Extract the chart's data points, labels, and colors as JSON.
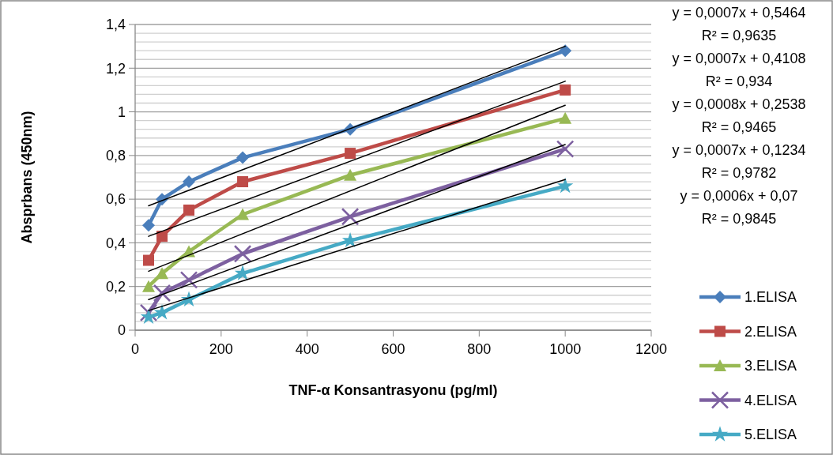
{
  "chart_data": {
    "type": "line",
    "xlabel": "TNF-α Konsantrasyonu (pg/ml)",
    "ylabel": "Absprbans (450nm)",
    "x": [
      31.25,
      62.5,
      125,
      250,
      500,
      1000
    ],
    "xlim": [
      0,
      1200
    ],
    "xticks": [
      0,
      200,
      400,
      600,
      800,
      1000,
      1200
    ],
    "ylim": [
      0,
      1.4
    ],
    "yticks": [
      0,
      {
        "value": 0.04,
        "label": null
      },
      {
        "value": 0.08,
        "label": null
      },
      {
        "value": 0.12,
        "label": null
      },
      {
        "value": 0.16,
        "label": null
      },
      {
        "value": 0.2,
        "label": "0,2"
      },
      {
        "value": 0.24,
        "label": null
      },
      {
        "value": 0.28,
        "label": null
      },
      {
        "value": 0.32,
        "label": null
      },
      {
        "value": 0.36,
        "label": null
      },
      {
        "value": 0.4,
        "label": "0,4"
      },
      {
        "value": 0.44,
        "label": null
      },
      {
        "value": 0.48,
        "label": null
      },
      {
        "value": 0.52,
        "label": null
      },
      {
        "value": 0.56,
        "label": null
      },
      {
        "value": 0.6,
        "label": "0,6"
      },
      {
        "value": 0.64,
        "label": null
      },
      {
        "value": 0.68,
        "label": null
      },
      {
        "value": 0.72,
        "label": null
      },
      {
        "value": 0.76,
        "label": null
      },
      {
        "value": 0.8,
        "label": "0,8"
      },
      {
        "value": 0.84,
        "label": null
      },
      {
        "value": 0.88,
        "label": null
      },
      {
        "value": 0.92,
        "label": null
      },
      {
        "value": 0.96,
        "label": null
      },
      1,
      {
        "value": 1.04,
        "label": null
      },
      {
        "value": 1.08,
        "label": null
      },
      {
        "value": 1.12,
        "label": null
      },
      {
        "value": 1.16,
        "label": null
      },
      {
        "value": 1.2,
        "label": "1,2"
      },
      {
        "value": 1.24,
        "label": null
      },
      {
        "value": 1.28,
        "label": null
      },
      {
        "value": 1.32,
        "label": null
      },
      {
        "value": 1.36,
        "label": null
      },
      {
        "value": 1.4,
        "label": "1,4"
      }
    ],
    "grid": "y",
    "legend": "right",
    "line_style": "solid",
    "series": [
      {
        "name": "1.ELISA",
        "color": "#4a7ebb",
        "marker": "diamond",
        "values": [
          0.48,
          0.6,
          0.68,
          0.79,
          0.92,
          1.28
        ]
      },
      {
        "name": "2.ELISA",
        "color": "#be4b48",
        "marker": "square",
        "values": [
          0.32,
          0.43,
          0.55,
          0.68,
          0.81,
          1.1
        ]
      },
      {
        "name": "3.ELISA",
        "color": "#98b954",
        "marker": "triangle",
        "values": [
          0.2,
          0.26,
          0.36,
          0.53,
          0.71,
          0.97
        ]
      },
      {
        "name": "4.ELISA",
        "color": "#7d60a0",
        "marker": "cross",
        "values": [
          0.08,
          0.17,
          0.23,
          0.35,
          0.52,
          0.83
        ]
      },
      {
        "name": "5.ELISA",
        "color": "#46aac5",
        "marker": "star",
        "values": [
          0.06,
          0.08,
          0.14,
          0.26,
          0.41,
          0.66
        ]
      },
      {
        "type": "line",
        "color": "#000000",
        "marker": "none",
        "values": [
          0.57,
          null,
          null,
          null,
          null,
          1.3
        ]
      },
      {
        "type": "line",
        "color": "#000000",
        "marker": "none",
        "values": [
          0.43,
          null,
          null,
          null,
          null,
          1.14
        ]
      },
      {
        "type": "line",
        "color": "#000000",
        "marker": "none",
        "values": [
          0.27,
          null,
          null,
          null,
          null,
          1.03
        ]
      },
      {
        "type": "line",
        "color": "#000000",
        "marker": "none",
        "values": [
          0.14,
          null,
          null,
          null,
          null,
          0.85
        ]
      },
      {
        "type": "line",
        "color": "#000000",
        "marker": "none",
        "values": [
          0.09,
          null,
          null,
          null,
          null,
          0.69
        ]
      }
    ],
    "annotations": [
      "y = 0,0007x + 0,5464",
      "R² = 0,9635",
      "y = 0,0007x + 0,4108",
      "R² = 0,934",
      "y = 0,0008x + 0,2538",
      "R² = 0,9465",
      "y = 0,0007x + 0,1234",
      "R² = 0,9782",
      "y = 0,0006x + 0,07",
      "R² = 0,9845"
    ]
  }
}
